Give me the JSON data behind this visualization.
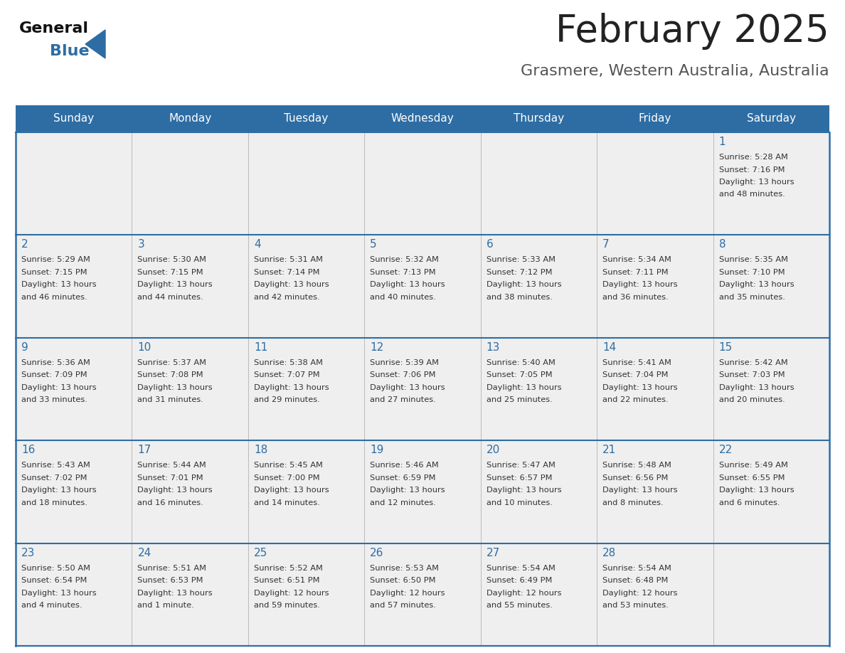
{
  "title": "February 2025",
  "subtitle": "Grasmere, Western Australia, Australia",
  "days_of_week": [
    "Sunday",
    "Monday",
    "Tuesday",
    "Wednesday",
    "Thursday",
    "Friday",
    "Saturday"
  ],
  "header_bg_color": "#2E6DA4",
  "header_text_color": "#FFFFFF",
  "cell_bg_color": "#EFEFEF",
  "title_color": "#222222",
  "subtitle_color": "#555555",
  "day_number_color": "#2E6DA4",
  "cell_text_color": "#333333",
  "border_color": "#2E6DA4",
  "vert_line_color": "#BBBBBB",
  "calendar_data": [
    [
      null,
      null,
      null,
      null,
      null,
      null,
      {
        "day": 1,
        "sunrise": "5:28 AM",
        "sunset": "7:16 PM",
        "daylight": "13 hours and 48 minutes."
      }
    ],
    [
      {
        "day": 2,
        "sunrise": "5:29 AM",
        "sunset": "7:15 PM",
        "daylight": "13 hours and 46 minutes."
      },
      {
        "day": 3,
        "sunrise": "5:30 AM",
        "sunset": "7:15 PM",
        "daylight": "13 hours and 44 minutes."
      },
      {
        "day": 4,
        "sunrise": "5:31 AM",
        "sunset": "7:14 PM",
        "daylight": "13 hours and 42 minutes."
      },
      {
        "day": 5,
        "sunrise": "5:32 AM",
        "sunset": "7:13 PM",
        "daylight": "13 hours and 40 minutes."
      },
      {
        "day": 6,
        "sunrise": "5:33 AM",
        "sunset": "7:12 PM",
        "daylight": "13 hours and 38 minutes."
      },
      {
        "day": 7,
        "sunrise": "5:34 AM",
        "sunset": "7:11 PM",
        "daylight": "13 hours and 36 minutes."
      },
      {
        "day": 8,
        "sunrise": "5:35 AM",
        "sunset": "7:10 PM",
        "daylight": "13 hours and 35 minutes."
      }
    ],
    [
      {
        "day": 9,
        "sunrise": "5:36 AM",
        "sunset": "7:09 PM",
        "daylight": "13 hours and 33 minutes."
      },
      {
        "day": 10,
        "sunrise": "5:37 AM",
        "sunset": "7:08 PM",
        "daylight": "13 hours and 31 minutes."
      },
      {
        "day": 11,
        "sunrise": "5:38 AM",
        "sunset": "7:07 PM",
        "daylight": "13 hours and 29 minutes."
      },
      {
        "day": 12,
        "sunrise": "5:39 AM",
        "sunset": "7:06 PM",
        "daylight": "13 hours and 27 minutes."
      },
      {
        "day": 13,
        "sunrise": "5:40 AM",
        "sunset": "7:05 PM",
        "daylight": "13 hours and 25 minutes."
      },
      {
        "day": 14,
        "sunrise": "5:41 AM",
        "sunset": "7:04 PM",
        "daylight": "13 hours and 22 minutes."
      },
      {
        "day": 15,
        "sunrise": "5:42 AM",
        "sunset": "7:03 PM",
        "daylight": "13 hours and 20 minutes."
      }
    ],
    [
      {
        "day": 16,
        "sunrise": "5:43 AM",
        "sunset": "7:02 PM",
        "daylight": "13 hours and 18 minutes."
      },
      {
        "day": 17,
        "sunrise": "5:44 AM",
        "sunset": "7:01 PM",
        "daylight": "13 hours and 16 minutes."
      },
      {
        "day": 18,
        "sunrise": "5:45 AM",
        "sunset": "7:00 PM",
        "daylight": "13 hours and 14 minutes."
      },
      {
        "day": 19,
        "sunrise": "5:46 AM",
        "sunset": "6:59 PM",
        "daylight": "13 hours and 12 minutes."
      },
      {
        "day": 20,
        "sunrise": "5:47 AM",
        "sunset": "6:57 PM",
        "daylight": "13 hours and 10 minutes."
      },
      {
        "day": 21,
        "sunrise": "5:48 AM",
        "sunset": "6:56 PM",
        "daylight": "13 hours and 8 minutes."
      },
      {
        "day": 22,
        "sunrise": "5:49 AM",
        "sunset": "6:55 PM",
        "daylight": "13 hours and 6 minutes."
      }
    ],
    [
      {
        "day": 23,
        "sunrise": "5:50 AM",
        "sunset": "6:54 PM",
        "daylight": "13 hours and 4 minutes."
      },
      {
        "day": 24,
        "sunrise": "5:51 AM",
        "sunset": "6:53 PM",
        "daylight": "13 hours and 1 minute."
      },
      {
        "day": 25,
        "sunrise": "5:52 AM",
        "sunset": "6:51 PM",
        "daylight": "12 hours and 59 minutes."
      },
      {
        "day": 26,
        "sunrise": "5:53 AM",
        "sunset": "6:50 PM",
        "daylight": "12 hours and 57 minutes."
      },
      {
        "day": 27,
        "sunrise": "5:54 AM",
        "sunset": "6:49 PM",
        "daylight": "12 hours and 55 minutes."
      },
      {
        "day": 28,
        "sunrise": "5:54 AM",
        "sunset": "6:48 PM",
        "daylight": "12 hours and 53 minutes."
      },
      null
    ]
  ],
  "logo_text_general": "General",
  "logo_text_blue": "Blue",
  "logo_triangle_color": "#2E6DA4"
}
